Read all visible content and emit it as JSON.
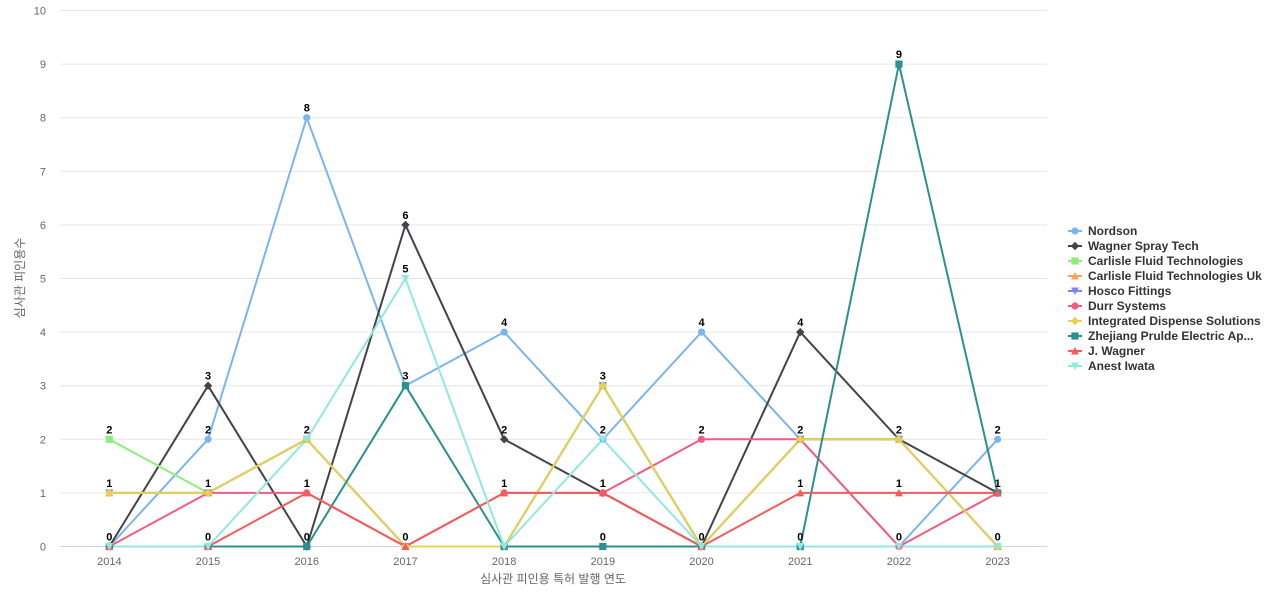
{
  "chart_data": {
    "type": "line",
    "title": "",
    "xlabel": "심사관 피인용 특허 발행 연도",
    "ylabel": "심사관 피인용수",
    "x": [
      "2014",
      "2015",
      "2016",
      "2017",
      "2018",
      "2019",
      "2020",
      "2021",
      "2022",
      "2023"
    ],
    "ylim": [
      0,
      10
    ],
    "yticks": [
      0,
      1,
      2,
      3,
      4,
      5,
      6,
      7,
      8,
      9,
      10
    ],
    "grid": true,
    "legend_position": "right",
    "series": [
      {
        "name": "Nordson",
        "color": "#7cb5ec",
        "marker": "circle",
        "values": [
          0,
          2,
          8,
          3,
          4,
          2,
          4,
          2,
          0,
          2
        ]
      },
      {
        "name": "Wagner Spray Tech",
        "color": "#434348",
        "marker": "diamond",
        "values": [
          0,
          3,
          0,
          6,
          2,
          1,
          0,
          4,
          2,
          1
        ]
      },
      {
        "name": "Carlisle Fluid Technologies",
        "color": "#90ed7d",
        "marker": "square",
        "values": [
          2,
          1,
          2,
          0,
          0,
          3,
          0,
          2,
          2,
          0
        ]
      },
      {
        "name": "Carlisle Fluid Technologies Uk",
        "color": "#f7a35c",
        "marker": "triangle",
        "values": [
          1,
          1,
          2,
          0,
          0,
          3,
          0,
          2,
          2,
          0
        ]
      },
      {
        "name": "Hosco Fittings",
        "color": "#8085e9",
        "marker": "triangle-down",
        "values": [
          1,
          1,
          2,
          0,
          0,
          3,
          0,
          2,
          2,
          0
        ]
      },
      {
        "name": "Durr Systems",
        "color": "#f15c80",
        "marker": "circle",
        "values": [
          0,
          1,
          1,
          0,
          1,
          1,
          2,
          2,
          0,
          1
        ]
      },
      {
        "name": "Integrated Dispense Solutions",
        "color": "#e4d354",
        "marker": "diamond",
        "values": [
          1,
          1,
          2,
          0,
          0,
          3,
          0,
          2,
          2,
          0
        ]
      },
      {
        "name": "Zhejiang Prulde Electric Ap...",
        "color": "#2b908f",
        "marker": "square",
        "values": [
          0,
          0,
          0,
          3,
          0,
          0,
          0,
          0,
          9,
          1
        ]
      },
      {
        "name": "J. Wagner",
        "color": "#f45b5b",
        "marker": "triangle",
        "values": [
          0,
          0,
          1,
          0,
          1,
          1,
          0,
          1,
          1,
          1
        ]
      },
      {
        "name": "Anest Iwata",
        "color": "#91e8e1",
        "marker": "triangle-down",
        "values": [
          0,
          0,
          2,
          5,
          0,
          2,
          0,
          0,
          0,
          0
        ]
      }
    ],
    "data_labels": [
      {
        "x": "2014",
        "text": "2",
        "series": "Carlisle Fluid Technologies",
        "value": 2
      },
      {
        "x": "2014",
        "text": "1",
        "series": "Integrated Dispense Solutions",
        "value": 1
      },
      {
        "x": "2014",
        "text": "0",
        "series": "Nordson",
        "value": 0
      },
      {
        "x": "2015",
        "text": "3",
        "series": "Wagner Spray Tech",
        "value": 3
      },
      {
        "x": "2015",
        "text": "2",
        "series": "Nordson",
        "value": 2
      },
      {
        "x": "2015",
        "text": "1",
        "series": "Integrated Dispense Solutions",
        "value": 1
      },
      {
        "x": "2015",
        "text": "0",
        "series": "Anest Iwata",
        "value": 0
      },
      {
        "x": "2016",
        "text": "8",
        "series": "Nordson",
        "value": 8
      },
      {
        "x": "2016",
        "text": "2",
        "series": "Integrated Dispense Solutions",
        "value": 2
      },
      {
        "x": "2016",
        "text": "1",
        "series": "Durr Systems",
        "value": 1
      },
      {
        "x": "2016",
        "text": "0",
        "series": "Wagner Spray Tech",
        "value": 0
      },
      {
        "x": "2017",
        "text": "6",
        "series": "Wagner Spray Tech",
        "value": 6
      },
      {
        "x": "2017",
        "text": "5",
        "series": "Anest Iwata",
        "value": 5
      },
      {
        "x": "2017",
        "text": "3",
        "series": "Zhejiang Prulde Electric Ap...",
        "value": 3
      },
      {
        "x": "2017",
        "text": "0",
        "series": "J. Wagner",
        "value": 0
      },
      {
        "x": "2018",
        "text": "4",
        "series": "Nordson",
        "value": 4
      },
      {
        "x": "2018",
        "text": "2",
        "series": "Wagner Spray Tech",
        "value": 2
      },
      {
        "x": "2018",
        "text": "1",
        "series": "Durr Systems",
        "value": 1
      },
      {
        "x": "2019",
        "text": "3",
        "series": "Integrated Dispense Solutions",
        "value": 3
      },
      {
        "x": "2019",
        "text": "2",
        "series": "Nordson",
        "value": 2
      },
      {
        "x": "2019",
        "text": "1",
        "series": "Durr Systems",
        "value": 1
      },
      {
        "x": "2019",
        "text": "0",
        "series": "Zhejiang Prulde Electric Ap...",
        "value": 0
      },
      {
        "x": "2020",
        "text": "4",
        "series": "Nordson",
        "value": 4
      },
      {
        "x": "2020",
        "text": "2",
        "series": "Durr Systems",
        "value": 2
      },
      {
        "x": "2020",
        "text": "0",
        "series": "Wagner Spray Tech",
        "value": 0
      },
      {
        "x": "2021",
        "text": "4",
        "series": "Wagner Spray Tech",
        "value": 4
      },
      {
        "x": "2021",
        "text": "2",
        "series": "Integrated Dispense Solutions",
        "value": 2
      },
      {
        "x": "2021",
        "text": "1",
        "series": "J. Wagner",
        "value": 1
      },
      {
        "x": "2021",
        "text": "0",
        "series": "Zhejiang Prulde Electric Ap...",
        "value": 0
      },
      {
        "x": "2022",
        "text": "9",
        "series": "Zhejiang Prulde Electric Ap...",
        "value": 9
      },
      {
        "x": "2022",
        "text": "2",
        "series": "Wagner Spray Tech",
        "value": 2
      },
      {
        "x": "2022",
        "text": "1",
        "series": "J. Wagner",
        "value": 1
      },
      {
        "x": "2022",
        "text": "0",
        "series": "Nordson",
        "value": 0
      },
      {
        "x": "2023",
        "text": "2",
        "series": "Nordson",
        "value": 2
      },
      {
        "x": "2023",
        "text": "1",
        "series": "Wagner Spray Tech",
        "value": 1
      },
      {
        "x": "2023",
        "text": "0",
        "series": "Anest Iwata",
        "value": 0
      }
    ]
  }
}
